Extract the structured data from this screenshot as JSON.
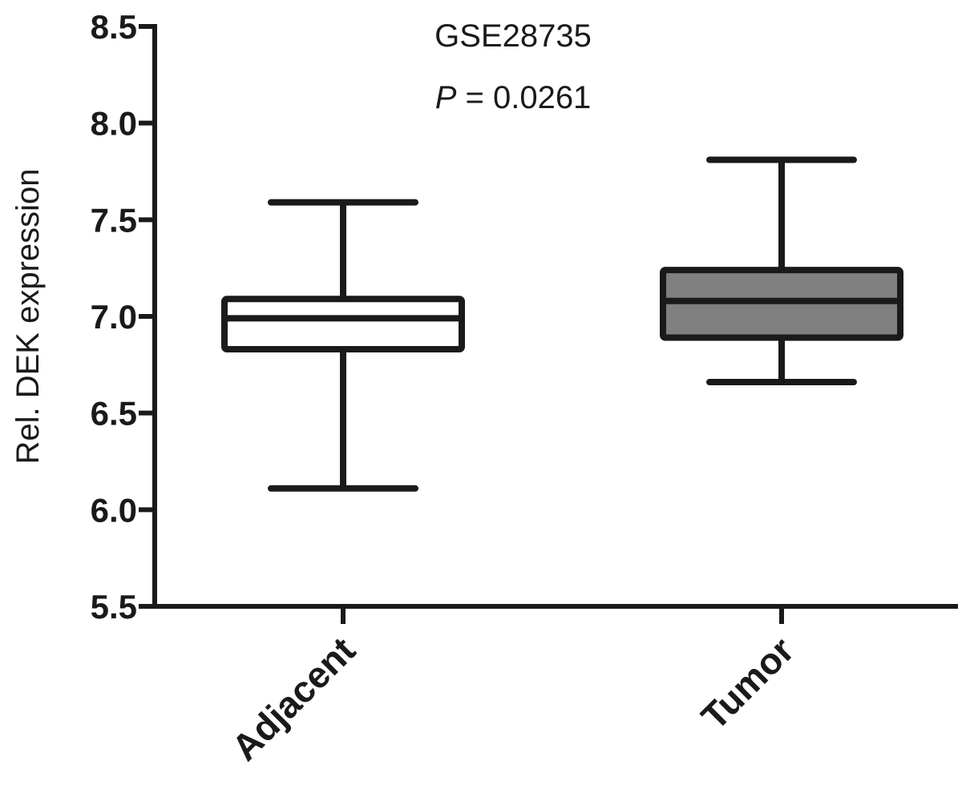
{
  "chart_data": {
    "type": "box",
    "title": "GSE28735",
    "annotation": {
      "p_label": "P",
      "p_rest": " = 0.0261"
    },
    "xlabel": "",
    "ylabel": "Rel. DEK expression",
    "ylim": [
      5.5,
      8.5
    ],
    "yticks": [
      "5.5",
      "6.0",
      "6.5",
      "7.0",
      "7.5",
      "8.0",
      "8.5"
    ],
    "categories": [
      "Adjacent",
      "Tumor"
    ],
    "boxes": [
      {
        "category": "Adjacent",
        "min": 6.11,
        "q1": 6.83,
        "median": 6.99,
        "q3": 7.09,
        "max": 7.59,
        "fill": "#ffffff"
      },
      {
        "category": "Tumor",
        "min": 6.66,
        "q1": 6.89,
        "median": 7.08,
        "q3": 7.24,
        "max": 7.81,
        "fill": "#808080"
      }
    ]
  }
}
